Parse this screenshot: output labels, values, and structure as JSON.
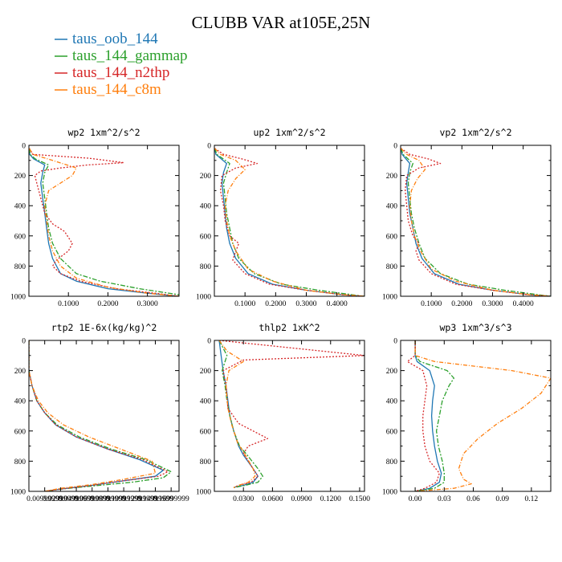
{
  "title": "CLUBB VAR at105E,25N",
  "legend": [
    {
      "label": "taus_oob_144",
      "color": "#1f77b4",
      "dash": ""
    },
    {
      "label": "taus_144_gammap",
      "color": "#2ca02c",
      "dash": "6,2,2,2"
    },
    {
      "label": "taus_144_n2thp",
      "color": "#d62728",
      "dash": "2,2"
    },
    {
      "label": "taus_144_c8m",
      "color": "#ff7f0e",
      "dash": "5,2,1,2"
    }
  ],
  "chart_data": [
    {
      "type": "line",
      "title": "wp2  1xm^2/s^2",
      "xlim": [
        0,
        0.38
      ],
      "ylim": [
        1000,
        0
      ],
      "xticks": [
        0.1,
        0.2,
        0.3
      ],
      "xticklabels": [
        "0.1000",
        "0.2000",
        "0.3000"
      ],
      "yticks": [
        0,
        200,
        400,
        600,
        800,
        1000
      ],
      "yticklabels": [
        "0",
        "200",
        "400",
        "600",
        "800",
        "1000"
      ],
      "series": [
        {
          "name": "taus_oob_144",
          "x": [
            0.001,
            0.002,
            0.012,
            0.04,
            0.035,
            0.03,
            0.035,
            0.04,
            0.045,
            0.05,
            0.06,
            0.08,
            0.12,
            0.2,
            0.3,
            0.38
          ],
          "y": [
            20,
            60,
            90,
            130,
            180,
            250,
            350,
            450,
            550,
            650,
            750,
            850,
            900,
            950,
            980,
            1000
          ]
        },
        {
          "name": "taus_144_gammap",
          "x": [
            0.001,
            0.003,
            0.016,
            0.05,
            0.04,
            0.035,
            0.04,
            0.045,
            0.05,
            0.06,
            0.08,
            0.12,
            0.18,
            0.28,
            0.38
          ],
          "y": [
            20,
            60,
            90,
            130,
            180,
            250,
            350,
            450,
            550,
            650,
            750,
            850,
            900,
            950,
            990
          ]
        },
        {
          "name": "taus_144_n2thp",
          "x": [
            0.001,
            0.01,
            0.15,
            0.24,
            0.15,
            0.08,
            0.03,
            0.015,
            0.02,
            0.03,
            0.04,
            0.06,
            0.09,
            0.11,
            0.1,
            0.07,
            0.06,
            0.08,
            0.13,
            0.22,
            0.32,
            0.38
          ],
          "y": [
            20,
            60,
            85,
            115,
            130,
            150,
            170,
            200,
            250,
            350,
            450,
            520,
            570,
            650,
            700,
            760,
            800,
            850,
            900,
            950,
            980,
            1000
          ]
        },
        {
          "name": "taus_144_c8m",
          "x": [
            0.001,
            0.01,
            0.06,
            0.12,
            0.11,
            0.08,
            0.05,
            0.04,
            0.045,
            0.05,
            0.06,
            0.08,
            0.12,
            0.2,
            0.3,
            0.38
          ],
          "y": [
            20,
            60,
            100,
            150,
            200,
            250,
            300,
            400,
            500,
            600,
            700,
            800,
            880,
            940,
            980,
            1000
          ]
        }
      ]
    },
    {
      "type": "line",
      "title": "up2  1xm^2/s^2",
      "xlim": [
        0,
        0.49
      ],
      "ylim": [
        1000,
        0
      ],
      "xticks": [
        0.1,
        0.2,
        0.3,
        0.4
      ],
      "xticklabels": [
        "0.1000",
        "0.2000",
        "0.3000",
        "0.4000"
      ],
      "yticks": [
        0,
        200,
        400,
        600,
        800,
        1000
      ],
      "yticklabels": [
        "0",
        "200",
        "400",
        "600",
        "800",
        "1000"
      ],
      "series": [
        {
          "name": "taus_oob_144",
          "x": [
            0.001,
            0.005,
            0.04,
            0.03,
            0.025,
            0.03,
            0.035,
            0.04,
            0.05,
            0.07,
            0.11,
            0.19,
            0.3,
            0.42,
            0.49
          ],
          "y": [
            20,
            60,
            120,
            180,
            250,
            350,
            450,
            550,
            650,
            750,
            850,
            920,
            960,
            990,
            1000
          ]
        },
        {
          "name": "taus_144_gammap",
          "x": [
            0.001,
            0.008,
            0.05,
            0.04,
            0.03,
            0.035,
            0.04,
            0.05,
            0.06,
            0.08,
            0.13,
            0.22,
            0.34,
            0.45,
            0.49
          ],
          "y": [
            20,
            60,
            120,
            180,
            250,
            350,
            450,
            550,
            650,
            750,
            850,
            920,
            960,
            990,
            1000
          ]
        },
        {
          "name": "taus_144_n2thp",
          "x": [
            0.001,
            0.03,
            0.09,
            0.14,
            0.07,
            0.025,
            0.02,
            0.03,
            0.035,
            0.05,
            0.08,
            0.07,
            0.06,
            0.1,
            0.18,
            0.3,
            0.42,
            0.49
          ],
          "y": [
            20,
            60,
            90,
            120,
            150,
            200,
            300,
            400,
            500,
            600,
            650,
            700,
            760,
            850,
            920,
            960,
            990,
            1000
          ]
        },
        {
          "name": "taus_144_c8m",
          "x": [
            0.001,
            0.02,
            0.07,
            0.1,
            0.07,
            0.045,
            0.035,
            0.04,
            0.05,
            0.07,
            0.11,
            0.19,
            0.3,
            0.42,
            0.49
          ],
          "y": [
            20,
            60,
            100,
            160,
            220,
            300,
            400,
            500,
            600,
            700,
            820,
            900,
            960,
            990,
            1000
          ]
        }
      ]
    },
    {
      "type": "line",
      "title": "vp2  1xm^2/s^2",
      "xlim": [
        0,
        0.49
      ],
      "ylim": [
        1000,
        0
      ],
      "xticks": [
        0.1,
        0.2,
        0.3,
        0.4
      ],
      "xticklabels": [
        "0.1000",
        "0.2000",
        "0.3000",
        "0.4000"
      ],
      "yticks": [
        0,
        200,
        400,
        600,
        800,
        1000
      ],
      "yticklabels": [
        "0",
        "200",
        "400",
        "600",
        "800",
        "1000"
      ],
      "series": [
        {
          "name": "taus_oob_144",
          "x": [
            0.001,
            0.005,
            0.03,
            0.025,
            0.02,
            0.025,
            0.03,
            0.04,
            0.05,
            0.07,
            0.11,
            0.19,
            0.3,
            0.42,
            0.49
          ],
          "y": [
            20,
            60,
            120,
            180,
            250,
            350,
            450,
            550,
            650,
            750,
            850,
            920,
            960,
            990,
            1000
          ]
        },
        {
          "name": "taus_144_gammap",
          "x": [
            0.001,
            0.008,
            0.04,
            0.03,
            0.025,
            0.03,
            0.035,
            0.045,
            0.06,
            0.08,
            0.13,
            0.22,
            0.34,
            0.45,
            0.49
          ],
          "y": [
            20,
            60,
            120,
            180,
            250,
            350,
            450,
            550,
            650,
            750,
            850,
            920,
            960,
            990,
            1000
          ]
        },
        {
          "name": "taus_144_n2thp",
          "x": [
            0.001,
            0.03,
            0.09,
            0.13,
            0.06,
            0.02,
            0.015,
            0.02,
            0.025,
            0.04,
            0.06,
            0.05,
            0.06,
            0.1,
            0.18,
            0.3,
            0.42,
            0.49
          ],
          "y": [
            20,
            60,
            90,
            120,
            150,
            200,
            300,
            400,
            500,
            600,
            650,
            700,
            760,
            850,
            920,
            960,
            990,
            1000
          ]
        },
        {
          "name": "taus_144_c8m",
          "x": [
            0.001,
            0.02,
            0.06,
            0.08,
            0.055,
            0.035,
            0.03,
            0.035,
            0.045,
            0.065,
            0.1,
            0.18,
            0.3,
            0.42,
            0.49
          ],
          "y": [
            20,
            60,
            100,
            160,
            220,
            300,
            400,
            500,
            600,
            700,
            820,
            900,
            960,
            990,
            1000
          ]
        }
      ]
    },
    {
      "type": "line",
      "title": "rtp2  1E-6x(kg/kg)^2",
      "xlim": [
        0,
        0.95
      ],
      "ylim": [
        1000,
        0
      ],
      "xticks": [
        0.1,
        0.2,
        0.3,
        0.4,
        0.5,
        0.6,
        0.7,
        0.8,
        0.9
      ],
      "xticklabels": [
        "0.00999999",
        "0.02999999",
        "0.04999999",
        "0.06999999",
        "0.08999999",
        "0.10999999",
        "0.12999999",
        "0.14999999",
        "0.16999999"
      ],
      "yticks": [
        0,
        200,
        400,
        600,
        800,
        1000
      ],
      "yticklabels": [
        "0",
        "200",
        "400",
        "600",
        "800",
        "1000"
      ],
      "series": [
        {
          "name": "taus_oob_144",
          "x": [
            0.0,
            0.0,
            0.02,
            0.05,
            0.1,
            0.17,
            0.3,
            0.5,
            0.7,
            0.85,
            0.8,
            0.6,
            0.4,
            0.2,
            0.1
          ],
          "y": [
            0,
            200,
            300,
            400,
            480,
            560,
            640,
            720,
            790,
            860,
            900,
            930,
            960,
            985,
            1000
          ]
        },
        {
          "name": "taus_144_gammap",
          "x": [
            0.0,
            0.0,
            0.02,
            0.05,
            0.1,
            0.18,
            0.32,
            0.52,
            0.74,
            0.9,
            0.85,
            0.65,
            0.4,
            0.2,
            0.1
          ],
          "y": [
            0,
            200,
            300,
            400,
            480,
            560,
            640,
            720,
            790,
            870,
            910,
            940,
            965,
            985,
            1000
          ]
        },
        {
          "name": "taus_144_n2thp",
          "x": [
            0.0,
            0.0,
            0.02,
            0.05,
            0.1,
            0.17,
            0.3,
            0.5,
            0.72,
            0.88,
            0.82,
            0.6,
            0.4,
            0.2,
            0.1
          ],
          "y": [
            0,
            200,
            300,
            400,
            480,
            560,
            640,
            720,
            790,
            870,
            900,
            930,
            960,
            985,
            1000
          ]
        },
        {
          "name": "taus_144_c8m",
          "x": [
            0.0,
            0.0,
            0.02,
            0.06,
            0.12,
            0.22,
            0.38,
            0.58,
            0.78,
            0.8,
            0.6,
            0.4,
            0.2,
            0.1
          ],
          "y": [
            0,
            200,
            300,
            400,
            480,
            560,
            640,
            720,
            800,
            880,
            920,
            955,
            980,
            1000
          ]
        }
      ]
    },
    {
      "type": "line",
      "title": "thlp2  1xK^2",
      "xlim": [
        0,
        0.155
      ],
      "ylim": [
        1000,
        0
      ],
      "xticks": [
        0.03,
        0.06,
        0.09,
        0.12,
        0.15
      ],
      "xticklabels": [
        "0.0300",
        "0.0600",
        "0.0900",
        "0.1200",
        "0.1500"
      ],
      "yticks": [
        0,
        200,
        400,
        600,
        800,
        1000
      ],
      "yticklabels": [
        "0",
        "200",
        "400",
        "600",
        "800",
        "1000"
      ],
      "series": [
        {
          "name": "taus_oob_144",
          "x": [
            0.005,
            0.007,
            0.009,
            0.012,
            0.014,
            0.016,
            0.02,
            0.025,
            0.03,
            0.04,
            0.045,
            0.04,
            0.03,
            0.022,
            0.02
          ],
          "y": [
            0,
            100,
            200,
            300,
            400,
            500,
            600,
            700,
            760,
            850,
            900,
            940,
            960,
            970,
            975
          ]
        },
        {
          "name": "taus_144_gammap",
          "x": [
            0.005,
            0.013,
            0.008,
            0.011,
            0.013,
            0.016,
            0.02,
            0.026,
            0.034,
            0.045,
            0.05,
            0.045,
            0.032,
            0.02
          ],
          "y": [
            0,
            100,
            200,
            300,
            400,
            500,
            600,
            700,
            760,
            850,
            900,
            940,
            960,
            975
          ]
        },
        {
          "name": "taus_144_n2thp",
          "x": [
            0.005,
            0.155,
            0.03,
            0.009,
            0.012,
            0.014,
            0.025,
            0.055,
            0.035,
            0.03,
            0.04,
            0.045,
            0.038,
            0.025,
            0.02
          ],
          "y": [
            0,
            100,
            130,
            200,
            300,
            450,
            550,
            650,
            700,
            750,
            850,
            900,
            940,
            960,
            975
          ]
        },
        {
          "name": "taus_144_c8m",
          "x": [
            0.005,
            0.013,
            0.03,
            0.015,
            0.012,
            0.014,
            0.018,
            0.024,
            0.032,
            0.04,
            0.042,
            0.035,
            0.025,
            0.02
          ],
          "y": [
            0,
            70,
            140,
            200,
            300,
            450,
            560,
            680,
            760,
            850,
            900,
            940,
            960,
            975
          ]
        }
      ]
    },
    {
      "type": "line",
      "title": "wp3  1xm^3/s^3",
      "xlim": [
        -0.015,
        0.14
      ],
      "ylim": [
        1000,
        0
      ],
      "xticks": [
        0.0,
        0.03,
        0.06,
        0.09,
        0.12
      ],
      "xticklabels": [
        "0.00",
        "0.03",
        "0.06",
        "0.09",
        "0.12"
      ],
      "yticks": [
        0,
        200,
        400,
        600,
        800,
        1000
      ],
      "yticklabels": [
        "0",
        "200",
        "400",
        "600",
        "800",
        "1000"
      ],
      "series": [
        {
          "name": "taus_oob_144",
          "x": [
            0.0,
            0.0,
            0.002,
            0.015,
            0.02,
            0.018,
            0.017,
            0.018,
            0.02,
            0.023,
            0.027,
            0.025,
            0.015,
            0.0
          ],
          "y": [
            0,
            100,
            140,
            200,
            300,
            400,
            500,
            600,
            700,
            800,
            880,
            940,
            980,
            1000
          ]
        },
        {
          "name": "taus_144_gammap",
          "x": [
            0.0,
            0.0,
            0.005,
            0.033,
            0.04,
            0.035,
            0.028,
            0.025,
            0.022,
            0.024,
            0.028,
            0.03,
            0.03,
            0.02,
            0.0
          ],
          "y": [
            0,
            100,
            140,
            200,
            250,
            300,
            400,
            500,
            600,
            700,
            800,
            880,
            940,
            980,
            1000
          ]
        },
        {
          "name": "taus_144_n2thp",
          "x": [
            0.0,
            0.0,
            -0.008,
            0.008,
            0.012,
            0.01,
            0.008,
            0.008,
            0.01,
            0.015,
            0.025,
            0.022,
            0.01,
            0.0
          ],
          "y": [
            0,
            100,
            140,
            200,
            300,
            400,
            500,
            600,
            700,
            800,
            880,
            940,
            980,
            1000
          ]
        },
        {
          "name": "taus_144_c8m",
          "x": [
            0.0,
            0.0,
            0.02,
            0.1,
            0.14,
            0.13,
            0.11,
            0.085,
            0.065,
            0.05,
            0.045,
            0.05,
            0.058,
            0.04,
            0.0
          ],
          "y": [
            0,
            100,
            140,
            200,
            250,
            350,
            450,
            550,
            650,
            750,
            850,
            920,
            950,
            980,
            1000
          ]
        }
      ]
    }
  ]
}
